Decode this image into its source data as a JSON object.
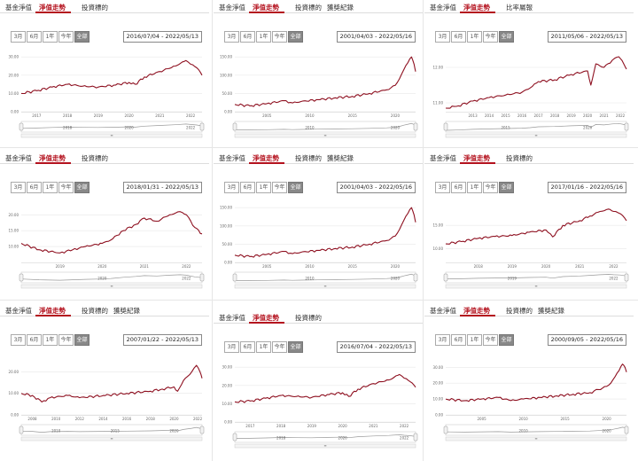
{
  "panels": [
    {
      "tabs": [
        "基金淨值",
        "淨值走勢",
        "投資標的"
      ],
      "active_tab": 1,
      "date_range": "2016/07/04 - 2022/05/13"
    },
    {
      "tabs": [
        "基金淨值",
        "淨值走勢",
        "投資標的",
        "獲獎紀錄"
      ],
      "active_tab": 1,
      "date_range": "2001/04/03 - 2022/05/16"
    },
    {
      "tabs": [
        "基金淨值",
        "淨值走勢",
        "比率屬報"
      ],
      "active_tab": 1,
      "date_range": "2011/05/06 - 2022/05/13"
    },
    {
      "tabs": [
        "基金淨值",
        "淨值走勢",
        "投資標的"
      ],
      "active_tab": 1,
      "date_range": "2018/01/31 - 2022/05/13"
    },
    {
      "tabs": [
        "基金淨值",
        "淨值走勢",
        "投資標的",
        "獲獎紀錄"
      ],
      "active_tab": 1,
      "date_range": "2001/04/03 - 2022/05/16"
    },
    {
      "tabs": [
        "基金淨值",
        "淨值走勢",
        "投資標的"
      ],
      "active_tab": 1,
      "date_range": "2017/01/16 - 2022/05/16"
    },
    {
      "tabs": [
        "基金淨值",
        "淨值走勢",
        "投資標的",
        "獲獎紀錄"
      ],
      "active_tab": 1,
      "date_range": "2007/01/22 - 2022/05/13"
    },
    {
      "tabs": [
        "基金淨值",
        "淨值走勢",
        "投資標的"
      ],
      "active_tab": 1,
      "date_range": "2016/07/04 - 2022/05/13"
    },
    {
      "tabs": [
        "基金淨值",
        "淨值走勢",
        "投資標的",
        "獲獎紀錄"
      ],
      "active_tab": 1,
      "date_range": "2000/09/05 - 2022/05/16"
    }
  ],
  "range_buttons": [
    "3月",
    "6月",
    "1年",
    "今年",
    "全部"
  ],
  "active_range": 4,
  "colors": {
    "accent": "#b4121e",
    "line": "#8e1020",
    "navigator": "#999999",
    "grid": "#e8e8e8"
  },
  "chart_data": [
    {
      "type": "line",
      "title": "",
      "xlabel": "",
      "ylabel": "",
      "x_ticks": [
        "2017",
        "2018",
        "2019",
        "2020",
        "2021",
        "2022"
      ],
      "x_domain": [
        2016.5,
        2022.37
      ],
      "y_ticks": [
        "0.00",
        "10.00",
        "20.00",
        "30.00"
      ],
      "ylim": [
        0,
        33
      ],
      "navigator_ticks": [
        "2018",
        "2020",
        "2022"
      ],
      "series": [
        {
          "x": [
            2016.5,
            2017.0,
            2017.5,
            2018.0,
            2018.5,
            2019.0,
            2019.5,
            2020.0,
            2020.2,
            2020.5,
            2021.0,
            2021.5,
            2021.85,
            2022.0,
            2022.2,
            2022.37
          ],
          "values": [
            10,
            11.5,
            13.5,
            15,
            14,
            13.5,
            14.5,
            16,
            15,
            19,
            22,
            25,
            28,
            26,
            24,
            20
          ]
        }
      ]
    },
    {
      "type": "line",
      "title": "",
      "xlabel": "",
      "ylabel": "",
      "x_ticks": [
        "2000",
        "2005",
        "2010",
        "2015",
        "2020"
      ],
      "x_domain": [
        2001.25,
        2022.38
      ],
      "y_ticks": [
        "0.00",
        "50.00",
        "100.00",
        "150.00"
      ],
      "ylim": [
        0,
        165
      ],
      "navigator_ticks": [
        "2010",
        "2020"
      ],
      "series": [
        {
          "x": [
            2001.25,
            2003,
            2005,
            2007,
            2008,
            2009,
            2011,
            2013,
            2015,
            2017,
            2019,
            2020,
            2020.5,
            2021,
            2021.5,
            2021.9,
            2022.2,
            2022.38
          ],
          "values": [
            20,
            16,
            22,
            30,
            24,
            28,
            33,
            38,
            42,
            50,
            60,
            72,
            90,
            115,
            135,
            150,
            130,
            110
          ]
        }
      ]
    },
    {
      "type": "line",
      "title": "",
      "xlabel": "",
      "ylabel": "",
      "x_ticks": [
        "2013",
        "2014",
        "2015",
        "2016",
        "2017",
        "2018",
        "2019",
        "2020",
        "2021",
        "2022"
      ],
      "x_domain": [
        2011.35,
        2022.37
      ],
      "y_ticks": [
        "11.00",
        "12.00"
      ],
      "ylim": [
        10.75,
        12.45
      ],
      "navigator_ticks": [
        "2015",
        "2020"
      ],
      "series": [
        {
          "x": [
            2011.35,
            2012.0,
            2013.0,
            2014.0,
            2015.0,
            2016.0,
            2016.5,
            2017.0,
            2018.0,
            2019.0,
            2020.0,
            2020.2,
            2020.5,
            2021.0,
            2021.5,
            2021.9,
            2022.2,
            2022.37
          ],
          "values": [
            10.85,
            10.9,
            11.05,
            11.15,
            11.22,
            11.3,
            11.42,
            11.6,
            11.65,
            11.8,
            11.9,
            11.5,
            12.1,
            12.0,
            12.2,
            12.3,
            12.1,
            11.95
          ]
        }
      ]
    },
    {
      "type": "line",
      "title": "",
      "xlabel": "",
      "ylabel": "",
      "x_ticks": [
        "2019",
        "2020",
        "2021",
        "2022"
      ],
      "x_domain": [
        2018.08,
        2022.37
      ],
      "y_ticks": [
        "10.00",
        "15.00",
        "20.00"
      ],
      "ylim": [
        5,
        24
      ],
      "navigator_ticks": [
        "2020",
        "2022"
      ],
      "series": [
        {
          "x": [
            2018.08,
            2018.5,
            2019.0,
            2019.3,
            2019.6,
            2020.0,
            2020.2,
            2020.5,
            2020.8,
            2021.0,
            2021.3,
            2021.6,
            2021.85,
            2022.0,
            2022.2,
            2022.37
          ],
          "values": [
            11,
            9,
            8,
            9,
            10,
            11,
            12,
            15,
            17,
            19,
            18,
            20,
            21,
            20,
            16,
            14
          ]
        }
      ]
    },
    {
      "type": "line",
      "title": "",
      "xlabel": "",
      "ylabel": "",
      "x_ticks": [
        "2000",
        "2005",
        "2010",
        "2015",
        "2020"
      ],
      "x_domain": [
        2001.25,
        2022.38
      ],
      "y_ticks": [
        "0.00",
        "50.00",
        "100.00",
        "150.00"
      ],
      "ylim": [
        0,
        165
      ],
      "navigator_ticks": [
        "2010",
        "2020"
      ],
      "series": [
        {
          "x": [
            2001.25,
            2003,
            2005,
            2007,
            2008,
            2009,
            2011,
            2013,
            2015,
            2017,
            2019,
            2020,
            2020.5,
            2021,
            2021.5,
            2021.9,
            2022.2,
            2022.38
          ],
          "values": [
            20,
            16,
            22,
            30,
            24,
            28,
            33,
            38,
            42,
            50,
            60,
            72,
            90,
            115,
            135,
            150,
            130,
            110
          ]
        }
      ]
    },
    {
      "type": "line",
      "title": "",
      "xlabel": "",
      "ylabel": "",
      "x_ticks": [
        "2018",
        "2019",
        "2020",
        "2021",
        "2022"
      ],
      "x_domain": [
        2017.04,
        2022.38
      ],
      "y_ticks": [
        "10.00",
        "15.00"
      ],
      "ylim": [
        7,
        20
      ],
      "navigator_ticks": [
        "2019",
        "2022"
      ],
      "series": [
        {
          "x": [
            2017.04,
            2017.5,
            2018.0,
            2018.5,
            2019.0,
            2019.5,
            2020.0,
            2020.2,
            2020.5,
            2021.0,
            2021.3,
            2021.6,
            2021.85,
            2022.0,
            2022.2,
            2022.38
          ],
          "values": [
            11,
            11.5,
            12.2,
            12.6,
            12.8,
            13.5,
            14,
            12.5,
            15,
            16,
            17,
            18,
            18.5,
            18,
            17.5,
            16
          ]
        }
      ]
    },
    {
      "type": "line",
      "title": "",
      "xlabel": "",
      "ylabel": "",
      "x_ticks": [
        "2008",
        "2010",
        "2012",
        "2014",
        "2016",
        "2018",
        "2020",
        "2022"
      ],
      "x_domain": [
        2007.06,
        2022.37
      ],
      "y_ticks": [
        "0.00",
        "10.00",
        "20.00"
      ],
      "ylim": [
        0,
        28
      ],
      "navigator_ticks": [
        "2010",
        "2015",
        "2020"
      ],
      "series": [
        {
          "x": [
            2007.06,
            2008.0,
            2008.8,
            2009.5,
            2011.0,
            2012.0,
            2014.0,
            2016.0,
            2018.0,
            2019.0,
            2020.0,
            2020.3,
            2020.8,
            2021.5,
            2021.9,
            2022.2,
            2022.37
          ],
          "values": [
            10,
            9,
            6,
            8,
            9,
            8,
            9,
            10,
            11,
            12,
            13,
            11,
            16,
            20,
            23,
            20,
            17
          ]
        }
      ]
    },
    {
      "type": "line",
      "title": "",
      "xlabel": "",
      "ylabel": "",
      "x_ticks": [
        "2017",
        "2018",
        "2019",
        "2020",
        "2021",
        "2022"
      ],
      "x_domain": [
        2016.5,
        2022.37
      ],
      "y_ticks": [
        "0.00",
        "10.00",
        "20.00",
        "30.00"
      ],
      "ylim": [
        0,
        33
      ],
      "navigator_ticks": [
        "2018",
        "2020",
        "2022"
      ],
      "series": [
        {
          "x": [
            2016.5,
            2017.0,
            2017.5,
            2018.0,
            2018.5,
            2019.0,
            2019.5,
            2020.0,
            2020.2,
            2020.5,
            2021.0,
            2021.5,
            2021.85,
            2022.0,
            2022.2,
            2022.37
          ],
          "values": [
            11,
            11.5,
            13,
            14.5,
            14,
            13.5,
            15,
            16,
            14,
            18,
            21,
            23,
            26,
            24,
            22,
            19
          ]
        }
      ]
    },
    {
      "type": "line",
      "title": "",
      "xlabel": "",
      "ylabel": "",
      "x_ticks": [
        "2005",
        "2010",
        "2015",
        "2020"
      ],
      "x_domain": [
        2000.68,
        2022.38
      ],
      "y_ticks": [
        "0.00",
        "10.00",
        "20.00",
        "30.00"
      ],
      "ylim": [
        0,
        38
      ],
      "navigator_ticks": [
        "2010",
        "2020"
      ],
      "series": [
        {
          "x": [
            2000.68,
            2003,
            2005,
            2007,
            2008.5,
            2010,
            2012,
            2014,
            2016,
            2018,
            2019,
            2020,
            2020.5,
            2021,
            2021.5,
            2021.9,
            2022.2,
            2022.38
          ],
          "values": [
            10,
            9,
            10,
            11,
            9,
            10,
            11,
            12,
            13,
            14,
            16,
            18,
            20,
            24,
            28,
            32,
            30,
            27
          ]
        }
      ]
    }
  ]
}
